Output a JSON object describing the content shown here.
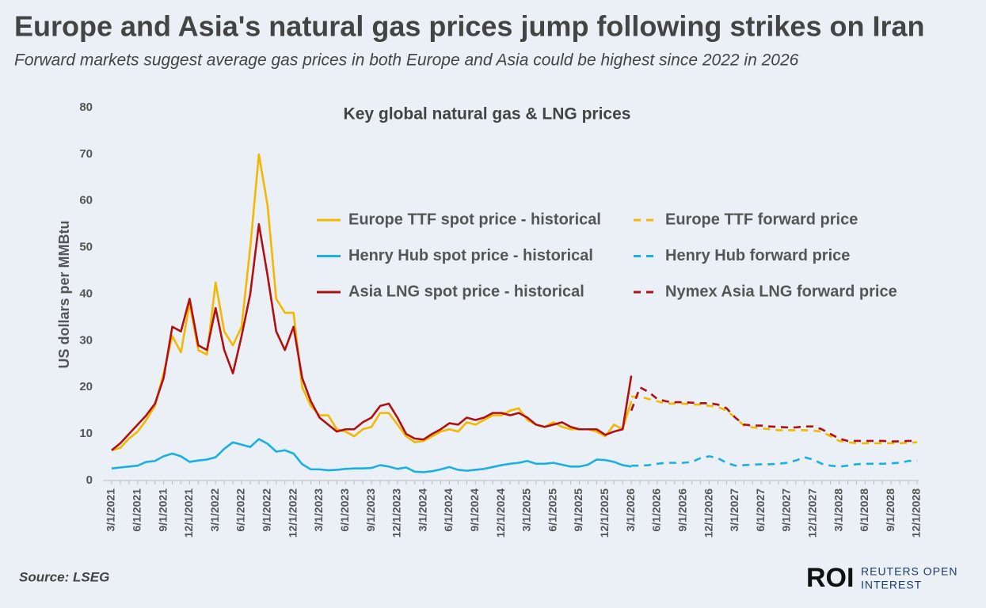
{
  "chart_data": {
    "type": "line",
    "title": "Europe and Asia's natural gas prices jump following strikes on Iran",
    "subtitle": "Forward markets suggest average gas prices in both Europe and Asia could be highest since 2022 in 2026",
    "chart_title": "Key global natural gas & LNG prices",
    "y_label": "US dollars per MMBtu",
    "source": "Source:  LSEG",
    "brand": "ROI",
    "brand_line1": "REUTERS OPEN",
    "brand_line2": "INTEREST",
    "ylim": [
      0,
      80
    ],
    "yticks": [
      0,
      10,
      20,
      30,
      40,
      50,
      60,
      70,
      80
    ],
    "grid": false,
    "categories": [
      "3/1/2021",
      null,
      null,
      "6/1/2021",
      null,
      null,
      "9/1/2021",
      null,
      null,
      "12/1/2021",
      null,
      null,
      "3/1/2022",
      null,
      null,
      "6/1/2022",
      null,
      null,
      "9/1/2022",
      null,
      null,
      "12/1/2022",
      null,
      null,
      "3/1/2023",
      null,
      null,
      "6/1/2023",
      null,
      null,
      "9/1/2023",
      null,
      null,
      "12/1/2023",
      null,
      null,
      "3/1/2024",
      null,
      null,
      "6/1/2024",
      null,
      null,
      "9/1/2024",
      null,
      null,
      "12/1/2024",
      null,
      null,
      "3/1/2025",
      null,
      null,
      "6/1/2025",
      null,
      null,
      "9/1/2025",
      null,
      null,
      "12/1/2025",
      null,
      null,
      "3/1/2026",
      null,
      null,
      "6/1/2026",
      null,
      null,
      "9/1/2026",
      null,
      null,
      "12/1/2026",
      null,
      null,
      "3/1/2027",
      null,
      null,
      "6/1/2027",
      null,
      null,
      "9/1/2027",
      null,
      null,
      "12/1/2027",
      null,
      null,
      "3/1/2028",
      null,
      null,
      "6/1/2028",
      null,
      null,
      "9/1/2028",
      null,
      null,
      "12/1/2028"
    ],
    "series": [
      {
        "name": "Europe TTF spot price - historical",
        "color": "#f5b800",
        "dashed": false,
        "values": [
          6.5,
          7,
          9,
          10.5,
          13,
          16,
          23,
          31,
          27.5,
          38,
          28,
          27,
          42.5,
          32,
          29,
          33,
          50,
          70,
          59,
          39,
          36,
          36,
          20,
          16,
          14,
          14,
          11,
          10.5,
          9.5,
          11,
          11.5,
          14.5,
          14.5,
          12,
          9.5,
          8.2,
          8.5,
          9.5,
          10.5,
          11,
          10.5,
          12.5,
          12,
          13,
          14,
          14,
          15,
          15.5,
          13,
          12,
          11.5,
          12.5,
          11.5,
          11,
          11,
          11,
          10.5,
          9.5,
          12,
          11,
          17,
          null,
          null,
          null,
          null,
          null,
          null,
          null,
          null,
          null,
          null,
          null,
          null,
          null,
          null,
          null,
          null,
          null,
          null,
          null,
          null,
          null,
          null,
          null,
          null,
          null,
          null,
          null,
          null,
          null,
          null,
          null,
          null,
          null
        ]
      },
      {
        "name": "Europe TTF forward price",
        "color": "#f5b800",
        "dashed": true,
        "values": [
          null,
          null,
          null,
          null,
          null,
          null,
          null,
          null,
          null,
          null,
          null,
          null,
          null,
          null,
          null,
          null,
          null,
          null,
          null,
          null,
          null,
          null,
          null,
          null,
          null,
          null,
          null,
          null,
          null,
          null,
          null,
          null,
          null,
          null,
          null,
          null,
          null,
          null,
          null,
          null,
          null,
          null,
          null,
          null,
          null,
          null,
          null,
          null,
          null,
          null,
          null,
          null,
          null,
          null,
          null,
          null,
          null,
          null,
          null,
          null,
          18,
          18,
          17.5,
          17,
          16.5,
          16.5,
          16.5,
          16.3,
          16.3,
          16,
          15.8,
          15,
          13.5,
          11.8,
          11.4,
          11.2,
          11,
          10.8,
          10.8,
          10.8,
          10.8,
          10.7,
          10.5,
          9.5,
          8.5,
          8.2,
          8,
          8,
          8,
          8,
          8,
          8,
          8.1,
          8.2
        ]
      },
      {
        "name": "Henry Hub spot price - historical",
        "color": "#1ab0e0",
        "dashed": false,
        "values": [
          2.6,
          2.8,
          3,
          3.2,
          4,
          4.2,
          5.2,
          5.8,
          5.2,
          4,
          4.3,
          4.5,
          5,
          6.8,
          8.2,
          7.7,
          7.2,
          8.9,
          7.9,
          6.2,
          6.5,
          5.8,
          3.5,
          2.4,
          2.4,
          2.2,
          2.3,
          2.5,
          2.6,
          2.6,
          2.7,
          3.3,
          3,
          2.5,
          2.8,
          1.9,
          1.8,
          2,
          2.4,
          2.9,
          2.3,
          2.1,
          2.3,
          2.5,
          2.9,
          3.3,
          3.6,
          3.8,
          4.2,
          3.6,
          3.6,
          3.8,
          3.4,
          3,
          3,
          3.4,
          4.5,
          4.4,
          4,
          3.3,
          3,
          null,
          null,
          null,
          null,
          null,
          null,
          null,
          null,
          null,
          null,
          null,
          null,
          null,
          null,
          null,
          null,
          null,
          null,
          null,
          null,
          null,
          null,
          null,
          null,
          null,
          null,
          null,
          null,
          null,
          null,
          null,
          null,
          null
        ]
      },
      {
        "name": "Henry Hub forward price",
        "color": "#1ab0e0",
        "dashed": true,
        "values": [
          null,
          null,
          null,
          null,
          null,
          null,
          null,
          null,
          null,
          null,
          null,
          null,
          null,
          null,
          null,
          null,
          null,
          null,
          null,
          null,
          null,
          null,
          null,
          null,
          null,
          null,
          null,
          null,
          null,
          null,
          null,
          null,
          null,
          null,
          null,
          null,
          null,
          null,
          null,
          null,
          null,
          null,
          null,
          null,
          null,
          null,
          null,
          null,
          null,
          null,
          null,
          null,
          null,
          null,
          null,
          null,
          null,
          null,
          null,
          null,
          3.2,
          3.2,
          3.3,
          3.6,
          3.8,
          3.8,
          3.8,
          4,
          4.8,
          5.2,
          4.8,
          3.8,
          3.2,
          3.3,
          3.4,
          3.5,
          3.5,
          3.6,
          3.8,
          4.3,
          5,
          4.5,
          3.6,
          3.2,
          3,
          3.2,
          3.5,
          3.6,
          3.6,
          3.6,
          3.7,
          3.8,
          4.2,
          4.3
        ]
      },
      {
        "name": "Asia LNG spot price - historical",
        "color": "#b01010",
        "dashed": false,
        "values": [
          6.5,
          8,
          10,
          12,
          14,
          16.5,
          22,
          33,
          32,
          39,
          29,
          28,
          37,
          28,
          23,
          31,
          40,
          55,
          44,
          32,
          28,
          33,
          22,
          17,
          13.5,
          12,
          10.5,
          11,
          11,
          12.5,
          13.5,
          16,
          16.5,
          13.5,
          10,
          9,
          8.8,
          10,
          11,
          12.3,
          12,
          13.5,
          13,
          13.5,
          14.5,
          14.5,
          14,
          14.5,
          13.5,
          12,
          11.5,
          12,
          12.5,
          11.5,
          11,
          11,
          11,
          9.8,
          10.5,
          11,
          22.5,
          null,
          null,
          null,
          null,
          null,
          null,
          null,
          null,
          null,
          null,
          null,
          null,
          null,
          null,
          null,
          null,
          null,
          null,
          null,
          null,
          null,
          null,
          null,
          null,
          null,
          null,
          null,
          null,
          null,
          null,
          null,
          null,
          null
        ]
      },
      {
        "name": "Nymex Asia LNG forward price",
        "color": "#b01010",
        "dashed": true,
        "values": [
          null,
          null,
          null,
          null,
          null,
          null,
          null,
          null,
          null,
          null,
          null,
          null,
          null,
          null,
          null,
          null,
          null,
          null,
          null,
          null,
          null,
          null,
          null,
          null,
          null,
          null,
          null,
          null,
          null,
          null,
          null,
          null,
          null,
          null,
          null,
          null,
          null,
          null,
          null,
          null,
          null,
          null,
          null,
          null,
          null,
          null,
          null,
          null,
          null,
          null,
          null,
          null,
          null,
          null,
          null,
          null,
          null,
          null,
          null,
          null,
          15,
          20,
          19,
          17.5,
          17,
          16.8,
          16.8,
          16.7,
          16.6,
          16.6,
          16.3,
          15.5,
          13.5,
          12,
          11.8,
          11.8,
          11.6,
          11.5,
          11.4,
          11.4,
          11.6,
          11.6,
          11,
          10,
          9,
          8.5,
          8.5,
          8.5,
          8.5,
          8.5,
          8.4,
          8.4,
          8.5,
          8.5
        ]
      }
    ]
  }
}
